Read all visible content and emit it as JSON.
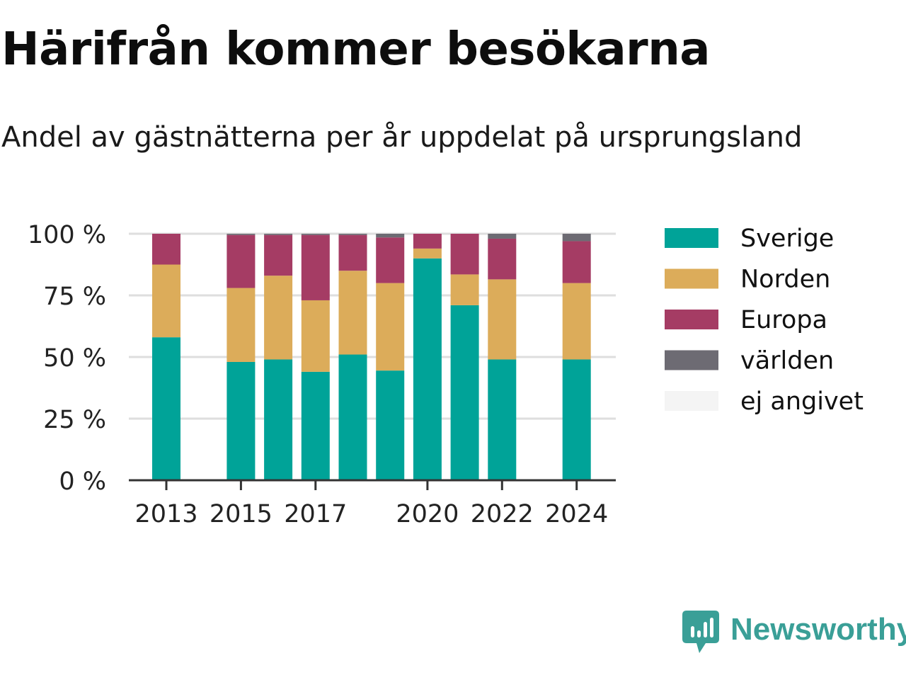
{
  "title": "Härifrån kommer besökarna",
  "subtitle": "Andel av gästnätterna per år uppdelat på ursprungsland",
  "brand": {
    "name": "Newsworthy",
    "icon": "newsworthy-logo-icon",
    "color": "#3a9f97"
  },
  "chart_data": {
    "type": "bar",
    "stacked": true,
    "title": "Härifrån kommer besökarna",
    "subtitle": "Andel av gästnätterna per år uppdelat på ursprungsland",
    "categories": [
      "2013",
      "2014",
      "2015",
      "2016",
      "2017",
      "2018",
      "2019",
      "2020",
      "2021",
      "2022",
      "2023",
      "2024"
    ],
    "x_tick_labels": [
      "2013",
      "2015",
      "2017",
      "2020",
      "2022",
      "2024"
    ],
    "y_ticks": [
      0,
      25,
      50,
      75,
      100
    ],
    "y_tick_labels": [
      "0 %",
      "25 %",
      "50 %",
      "75 %",
      "100 %"
    ],
    "ylim": [
      0,
      100
    ],
    "grid": true,
    "legend_position": "right",
    "series": [
      {
        "name": "Sverige",
        "color": "#00a398",
        "values": [
          58,
          null,
          48,
          49,
          44,
          51,
          44.5,
          90,
          71,
          49,
          null,
          49
        ]
      },
      {
        "name": "Norden",
        "color": "#dcac5a",
        "values": [
          29.5,
          null,
          30,
          34,
          29,
          34,
          35.5,
          4,
          12.5,
          32.5,
          null,
          31
        ]
      },
      {
        "name": "Europa",
        "color": "#a53c64",
        "values": [
          12.5,
          null,
          21.5,
          16.5,
          26.5,
          14.5,
          18.5,
          6,
          16.5,
          16.5,
          null,
          17
        ]
      },
      {
        "name": "världen",
        "color": "#6d6b73",
        "values": [
          0,
          null,
          0.5,
          0.5,
          0.5,
          0.5,
          1.5,
          0,
          0,
          2,
          null,
          3
        ]
      },
      {
        "name": "ej angivet",
        "color": "#f4f4f4",
        "values": [
          0,
          null,
          0,
          0,
          0,
          0,
          0,
          0,
          0,
          0,
          null,
          0
        ]
      }
    ]
  }
}
